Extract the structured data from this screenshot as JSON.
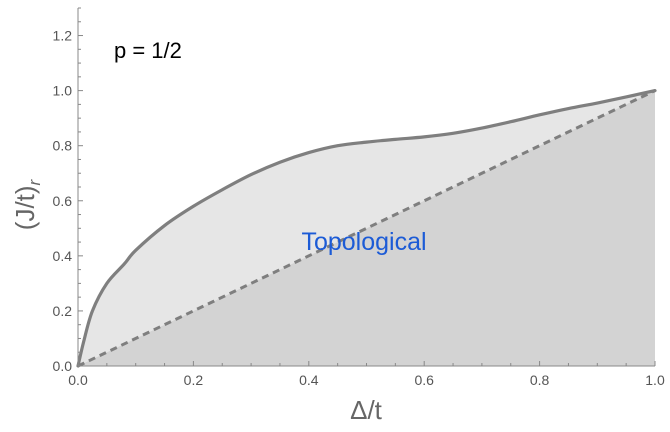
{
  "chart_data": {
    "type": "area",
    "xlabel": "Δ/t",
    "ylabel": "(J/t)r",
    "xlim": [
      0,
      1
    ],
    "ylim": [
      0,
      1.3
    ],
    "xticks": [
      "0.0",
      "0.2",
      "0.4",
      "0.6",
      "0.8",
      "1.0"
    ],
    "yticks": [
      "0.0",
      "0.2",
      "0.4",
      "0.6",
      "0.8",
      "1.0",
      "1.2"
    ],
    "grid": false,
    "annotation": "p = 1/2",
    "region_label": "Topological",
    "series": [
      {
        "style": "solid",
        "x": [
          0.0,
          0.01,
          0.025,
          0.05,
          0.08,
          0.1,
          0.15,
          0.2,
          0.25,
          0.3,
          0.35,
          0.4,
          0.45,
          0.5,
          0.55,
          0.6,
          0.65,
          0.7,
          0.75,
          0.8,
          0.85,
          0.9,
          0.95,
          1.0
        ],
        "y": [
          0.0,
          0.09,
          0.2,
          0.3,
          0.37,
          0.42,
          0.51,
          0.58,
          0.64,
          0.695,
          0.74,
          0.775,
          0.8,
          0.813,
          0.823,
          0.832,
          0.845,
          0.864,
          0.887,
          0.912,
          0.935,
          0.955,
          0.977,
          1.0
        ]
      },
      {
        "style": "dashed",
        "x": [
          0.0,
          1.0
        ],
        "y": [
          0.0,
          1.0
        ]
      }
    ],
    "colors": {
      "upper_region": "#e6e6e6",
      "lower_region": "#d3d3d3",
      "curve": "#7f7f7f",
      "axis": "#888888",
      "region_label": "#1c5bd6",
      "annotation": "#000000"
    }
  }
}
